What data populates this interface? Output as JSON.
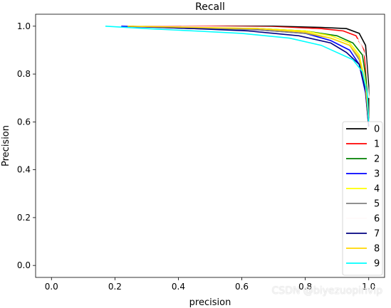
{
  "chart_data": {
    "type": "line",
    "title": "Recall",
    "xlabel": "precision",
    "ylabel": "Precision",
    "xlim": [
      -0.05,
      1.05
    ],
    "ylim": [
      -0.05,
      1.05
    ],
    "xticks": [
      0.0,
      0.2,
      0.4,
      0.6,
      0.8,
      1.0
    ],
    "xtick_labels": [
      "0.0",
      "0.2",
      "0.4",
      "0.6",
      "0.8",
      "1.0"
    ],
    "yticks": [
      0.0,
      0.2,
      0.4,
      0.6,
      0.8,
      1.0
    ],
    "ytick_labels": [
      "0.0",
      "0.2",
      "0.4",
      "0.6",
      "0.8",
      "1.0"
    ],
    "grid": false,
    "legend_position": "lower-right",
    "series": [
      {
        "name": "0",
        "color": "#000000",
        "x": [
          0.27,
          0.5,
          0.7,
          0.85,
          0.93,
          0.97,
          0.99,
          1.0,
          1.0
        ],
        "y": [
          1.0,
          1.0,
          1.0,
          0.995,
          0.99,
          0.97,
          0.92,
          0.75,
          0.6
        ]
      },
      {
        "name": "1",
        "color": "#ff0000",
        "x": [
          0.3,
          0.5,
          0.7,
          0.85,
          0.92,
          0.96,
          0.985,
          0.995,
          1.0
        ],
        "y": [
          1.0,
          1.0,
          0.997,
          0.99,
          0.98,
          0.96,
          0.9,
          0.75,
          0.62
        ]
      },
      {
        "name": "2",
        "color": "#008000",
        "x": [
          0.25,
          0.45,
          0.65,
          0.8,
          0.9,
          0.95,
          0.98,
          0.995,
          1.0
        ],
        "y": [
          1.0,
          0.995,
          0.99,
          0.98,
          0.96,
          0.93,
          0.88,
          0.75,
          0.6
        ]
      },
      {
        "name": "3",
        "color": "#0000ff",
        "x": [
          0.22,
          0.45,
          0.65,
          0.8,
          0.88,
          0.94,
          0.97,
          0.99,
          1.0
        ],
        "y": [
          1.0,
          0.99,
          0.985,
          0.97,
          0.94,
          0.9,
          0.84,
          0.72,
          0.58
        ]
      },
      {
        "name": "4",
        "color": "#ffff00",
        "x": [
          0.25,
          0.45,
          0.65,
          0.8,
          0.88,
          0.94,
          0.97,
          0.99,
          1.0
        ],
        "y": [
          1.0,
          0.995,
          0.99,
          0.98,
          0.96,
          0.93,
          0.88,
          0.76,
          0.6
        ]
      },
      {
        "name": "5",
        "color": "#808080",
        "x": [
          0.26,
          0.45,
          0.65,
          0.8,
          0.88,
          0.94,
          0.97,
          0.99,
          1.0
        ],
        "y": [
          1.0,
          0.99,
          0.985,
          0.97,
          0.95,
          0.92,
          0.86,
          0.74,
          0.58
        ]
      },
      {
        "name": "6",
        "color": "#fffafa",
        "x": [
          0.26,
          0.5,
          0.7,
          0.85,
          0.93,
          0.97,
          0.99,
          1.0
        ],
        "y": [
          1.0,
          0.998,
          0.995,
          0.985,
          0.97,
          0.94,
          0.87,
          0.7
        ]
      },
      {
        "name": "7",
        "color": "#000080",
        "x": [
          0.24,
          0.45,
          0.62,
          0.78,
          0.88,
          0.93,
          0.97,
          0.99,
          1.0
        ],
        "y": [
          1.0,
          0.99,
          0.98,
          0.96,
          0.93,
          0.89,
          0.84,
          0.73,
          0.58
        ]
      },
      {
        "name": "8",
        "color": "#ffd700",
        "x": [
          0.24,
          0.45,
          0.65,
          0.8,
          0.88,
          0.94,
          0.97,
          0.99,
          1.0
        ],
        "y": [
          1.0,
          0.995,
          0.99,
          0.975,
          0.95,
          0.92,
          0.87,
          0.75,
          0.6
        ]
      },
      {
        "name": "9",
        "color": "#00ffff",
        "x": [
          0.17,
          0.3,
          0.45,
          0.6,
          0.75,
          0.85,
          0.9,
          0.95,
          0.98,
          0.995,
          1.0
        ],
        "y": [
          1.0,
          0.99,
          0.98,
          0.97,
          0.95,
          0.92,
          0.89,
          0.86,
          0.81,
          0.72,
          0.6
        ]
      }
    ]
  },
  "watermark": "CSDN @biyezuopinvip"
}
